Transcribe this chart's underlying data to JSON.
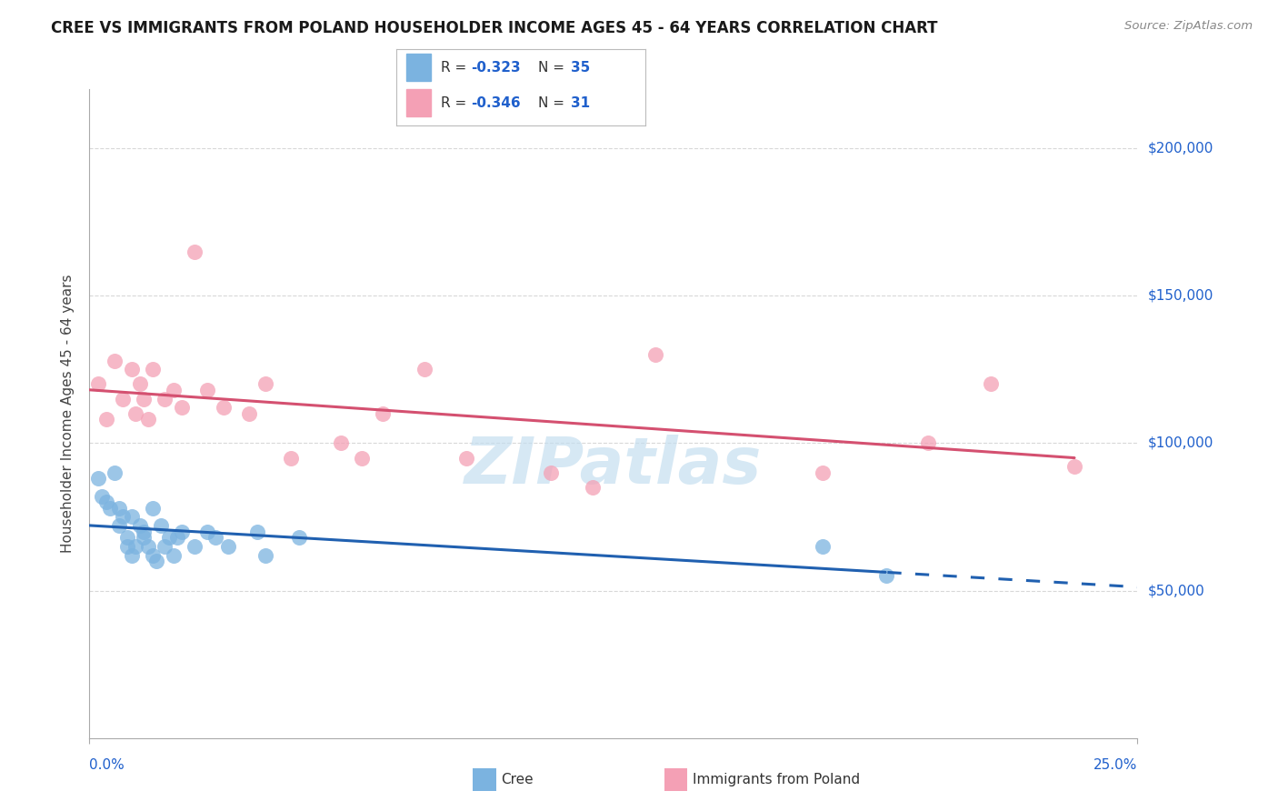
{
  "title": "CREE VS IMMIGRANTS FROM POLAND HOUSEHOLDER INCOME AGES 45 - 64 YEARS CORRELATION CHART",
  "source": "Source: ZipAtlas.com",
  "ylabel": "Householder Income Ages 45 - 64 years",
  "xlim": [
    0.0,
    0.25
  ],
  "ylim": [
    0,
    220000
  ],
  "yticks": [
    50000,
    100000,
    150000,
    200000
  ],
  "ytick_labels": [
    "$50,000",
    "$100,000",
    "$150,000",
    "$200,000"
  ],
  "xtick_left": "0.0%",
  "xtick_right": "25.0%",
  "cree_color": "#7bb3e0",
  "poland_color": "#f4a0b5",
  "cree_line_color": "#2060b0",
  "poland_line_color": "#d45070",
  "text_blue": "#2060cc",
  "background_color": "#ffffff",
  "grid_color": "#d8d8d8",
  "watermark_color": "#c5dff0",
  "cree_R": -0.323,
  "cree_N": 35,
  "poland_R": -0.346,
  "poland_N": 31,
  "cree_points_x": [
    0.002,
    0.003,
    0.004,
    0.005,
    0.006,
    0.007,
    0.007,
    0.008,
    0.009,
    0.009,
    0.01,
    0.01,
    0.011,
    0.012,
    0.013,
    0.013,
    0.014,
    0.015,
    0.015,
    0.016,
    0.017,
    0.018,
    0.019,
    0.02,
    0.021,
    0.022,
    0.025,
    0.028,
    0.03,
    0.033,
    0.04,
    0.042,
    0.05,
    0.175,
    0.19
  ],
  "cree_points_y": [
    88000,
    82000,
    80000,
    78000,
    90000,
    78000,
    72000,
    75000,
    68000,
    65000,
    75000,
    62000,
    65000,
    72000,
    70000,
    68000,
    65000,
    62000,
    78000,
    60000,
    72000,
    65000,
    68000,
    62000,
    68000,
    70000,
    65000,
    70000,
    68000,
    65000,
    70000,
    62000,
    68000,
    65000,
    55000
  ],
  "poland_points_x": [
    0.002,
    0.004,
    0.006,
    0.008,
    0.01,
    0.011,
    0.012,
    0.013,
    0.014,
    0.015,
    0.018,
    0.02,
    0.022,
    0.025,
    0.028,
    0.032,
    0.038,
    0.042,
    0.048,
    0.06,
    0.065,
    0.07,
    0.08,
    0.09,
    0.11,
    0.12,
    0.135,
    0.175,
    0.2,
    0.215,
    0.235
  ],
  "poland_points_y": [
    120000,
    108000,
    128000,
    115000,
    125000,
    110000,
    120000,
    115000,
    108000,
    125000,
    115000,
    118000,
    112000,
    165000,
    118000,
    112000,
    110000,
    120000,
    95000,
    100000,
    95000,
    110000,
    125000,
    95000,
    90000,
    85000,
    130000,
    90000,
    100000,
    120000,
    92000
  ]
}
